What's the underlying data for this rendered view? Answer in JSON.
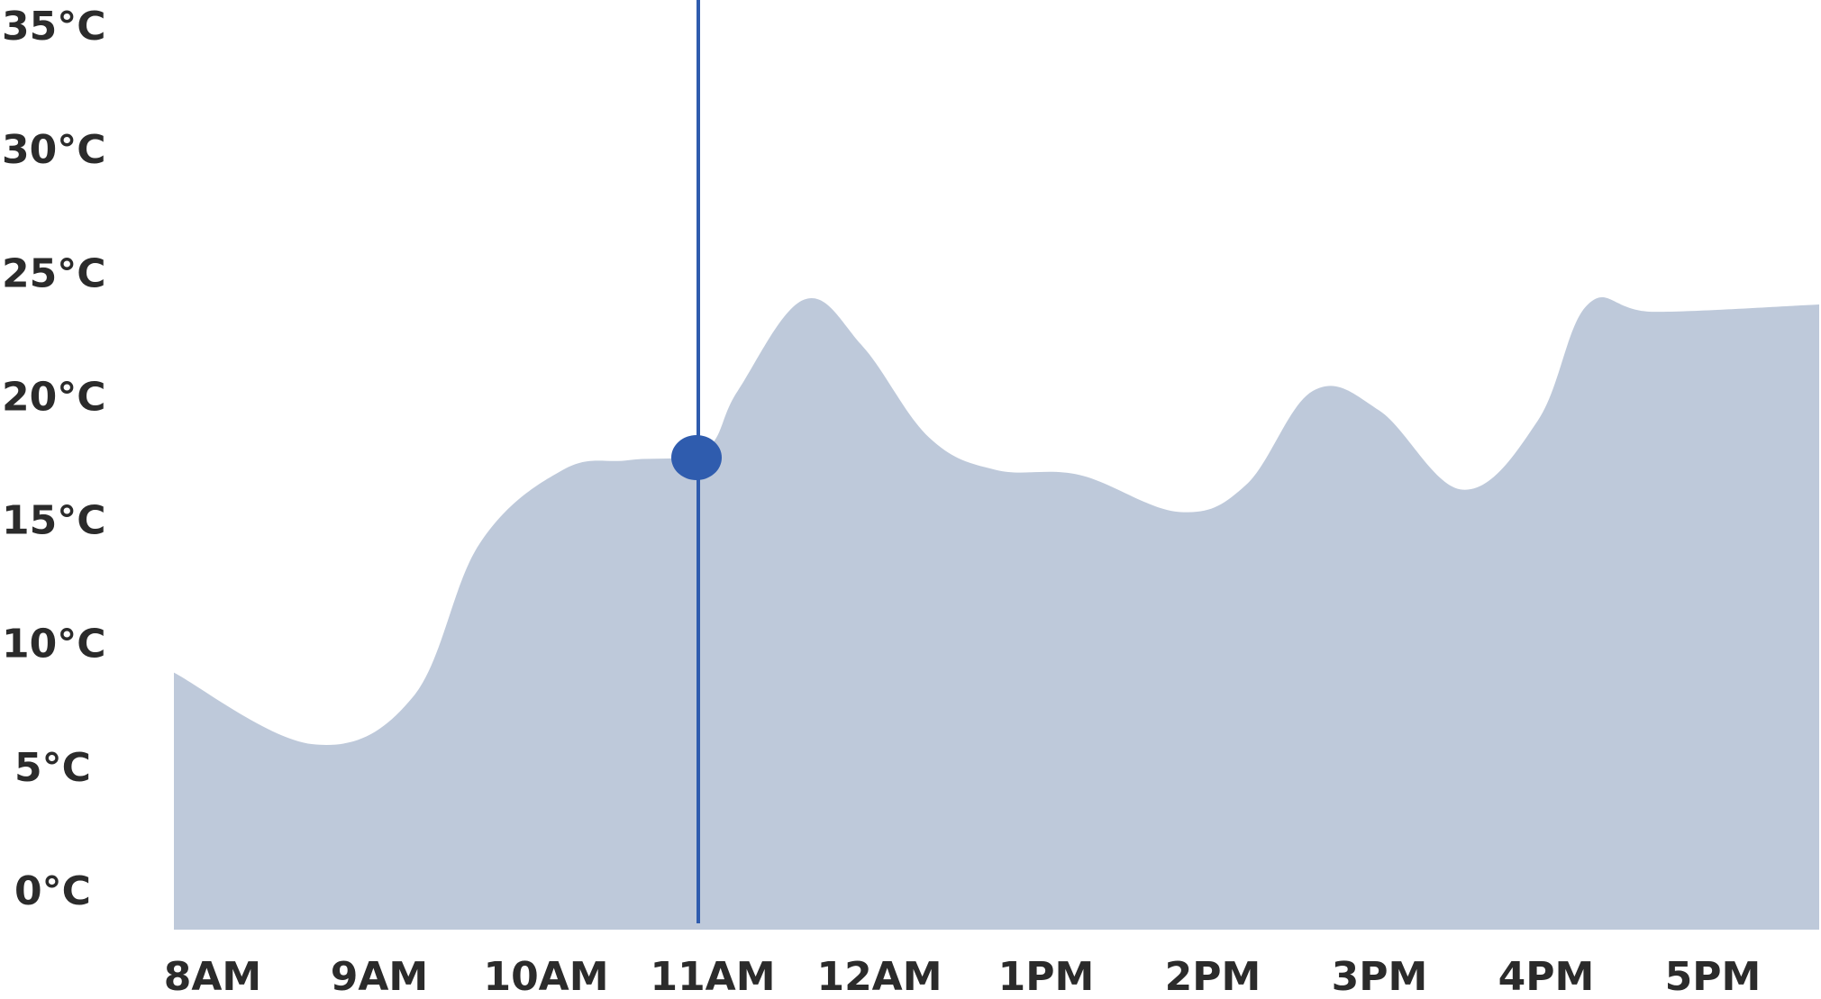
{
  "chart_data": {
    "type": "area",
    "title": "",
    "xlabel": "",
    "ylabel": "",
    "y_unit": "°C",
    "ylim": [
      0,
      35
    ],
    "y_ticks": [
      0,
      5,
      10,
      15,
      20,
      25,
      30,
      35
    ],
    "y_tick_labels": [
      "0°C",
      "5°C",
      "10°C",
      "15°C",
      "20°C",
      "25°C",
      "30°C",
      "35°C"
    ],
    "categories": [
      "8AM",
      "9AM",
      "10AM",
      "11AM",
      "12AM",
      "1PM",
      "2PM",
      "3PM",
      "4PM",
      "5PM"
    ],
    "grid": false,
    "legend": "none",
    "series": [
      {
        "color": "#bec9da",
        "points": [
          {
            "x": 0.0,
            "y": 8.8
          },
          {
            "x": 0.6,
            "y": 5.9
          },
          {
            "x": 1.2,
            "y": 7.8
          },
          {
            "x": 1.6,
            "y": 14.0
          },
          {
            "x": 2.1,
            "y": 17.0
          },
          {
            "x": 2.5,
            "y": 17.4
          },
          {
            "x": 2.95,
            "y": 17.8
          },
          {
            "x": 3.15,
            "y": 20.2
          },
          {
            "x": 3.55,
            "y": 23.9
          },
          {
            "x": 3.9,
            "y": 22.0
          },
          {
            "x": 4.3,
            "y": 18.3
          },
          {
            "x": 4.7,
            "y": 17.0
          },
          {
            "x": 5.2,
            "y": 16.8
          },
          {
            "x": 5.8,
            "y": 15.3
          },
          {
            "x": 6.2,
            "y": 16.4
          },
          {
            "x": 6.6,
            "y": 20.2
          },
          {
            "x": 7.0,
            "y": 19.4
          },
          {
            "x": 7.5,
            "y": 16.2
          },
          {
            "x": 7.95,
            "y": 19.0
          },
          {
            "x": 8.25,
            "y": 23.7
          },
          {
            "x": 8.65,
            "y": 23.4
          },
          {
            "x": 9.6,
            "y": 23.7
          }
        ]
      }
    ],
    "highlight": {
      "x": 3.0,
      "y": 17.5,
      "marker_color": "#2f5cae",
      "line_color": "#2f5cae"
    }
  }
}
